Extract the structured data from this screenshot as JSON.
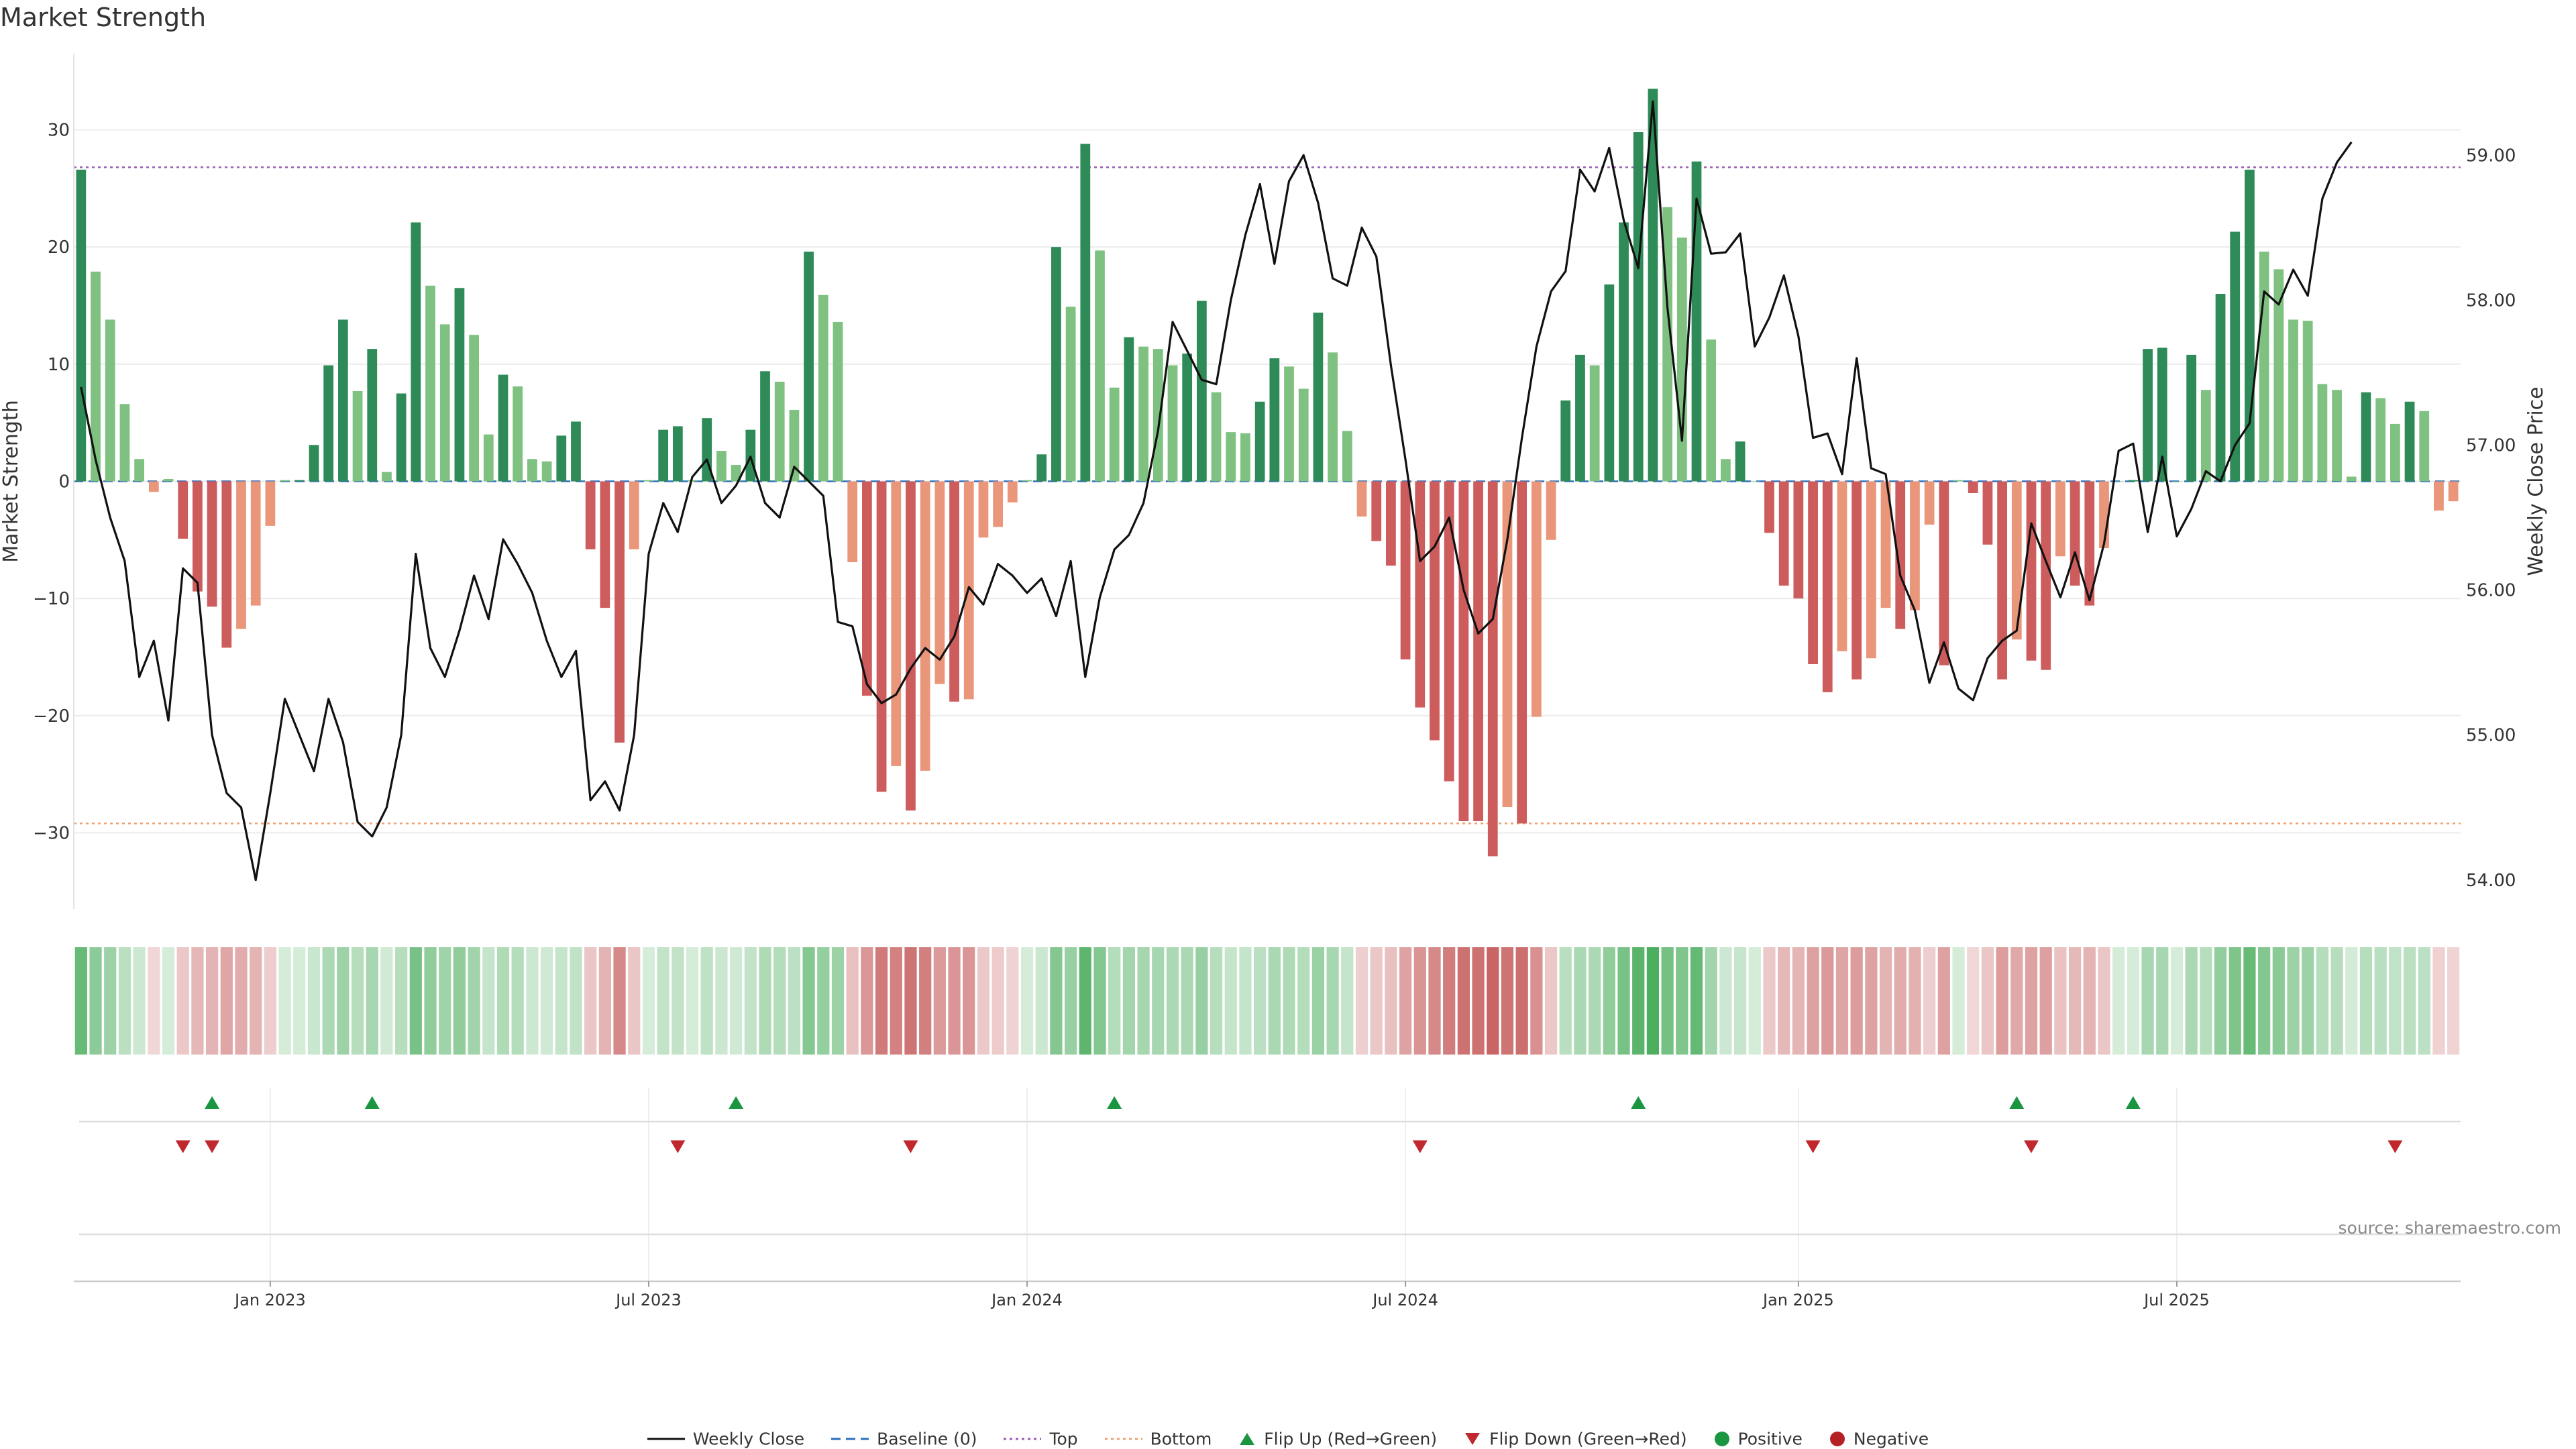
{
  "chart_data": {
    "type": "bar",
    "title": "Market Strength",
    "source": "source: sharemaestro.com",
    "left_axis": {
      "label": "Market Strength",
      "ticks": [
        30,
        20,
        10,
        0,
        -10,
        -20,
        -30
      ],
      "range": [
        -36.5,
        36.5
      ]
    },
    "right_axis": {
      "label": "Weekly Close Price",
      "ticks": [
        "59.00",
        "58.00",
        "57.00",
        "56.00",
        "55.00",
        "54.00"
      ],
      "range": [
        53.8,
        59.7
      ]
    },
    "x_ticks": [
      "Jan 2023",
      "Jul 2023",
      "Jan 2024",
      "Jul 2024",
      "Jan 2025",
      "Jul 2025"
    ],
    "reference_lines": {
      "baseline": 0,
      "top": 26.8,
      "bottom": -29.2
    },
    "strength_values": [
      26.6,
      17.9,
      13.8,
      6.6,
      1.9,
      -0.9,
      0.2,
      -4.9,
      -9.4,
      -10.7,
      -14.2,
      -12.6,
      -10.6,
      -3.8,
      0.1,
      0.1,
      3.1,
      9.9,
      13.8,
      7.7,
      11.3,
      0.8,
      7.5,
      22.1,
      16.7,
      13.4,
      16.5,
      12.5,
      4.0,
      9.1,
      8.1,
      1.9,
      1.7,
      3.9,
      5.1,
      -5.8,
      -10.8,
      -22.3,
      -5.8,
      0.1,
      4.4,
      4.7,
      0.1,
      5.4,
      2.6,
      1.4,
      4.4,
      9.4,
      8.5,
      6.1,
      19.6,
      15.9,
      13.6,
      -6.9,
      -18.3,
      -26.5,
      -24.3,
      -28.1,
      -24.7,
      -17.3,
      -18.8,
      -18.6,
      -4.8,
      -3.9,
      -1.8,
      0.1,
      2.3,
      20.0,
      14.9,
      28.8,
      19.7,
      8.0,
      12.3,
      11.5,
      11.3,
      9.9,
      10.9,
      15.4,
      7.6,
      4.2,
      4.1,
      6.8,
      10.5,
      9.8,
      7.9,
      14.4,
      11.0,
      4.3,
      -3.0,
      -5.1,
      -7.2,
      -15.2,
      -19.3,
      -22.1,
      -25.6,
      -29.0,
      -29.0,
      -32.0,
      -27.8,
      -29.2,
      -20.1,
      -5.0,
      6.9,
      10.8,
      9.9,
      16.8,
      22.1,
      29.8,
      33.5,
      23.4,
      20.8,
      27.3,
      12.1,
      1.9,
      3.4,
      0,
      -4.4,
      -8.9,
      -10.0,
      -15.6,
      -18.0,
      -14.5,
      -16.9,
      -15.1,
      -10.8,
      -12.6,
      -11.0,
      -3.7,
      -15.7,
      0.1,
      -1.0,
      -5.4,
      -16.9,
      -13.5,
      -15.3,
      -16.1,
      -6.4,
      -8.9,
      -10.6,
      -5.7,
      0,
      0.1,
      11.3,
      11.4,
      0,
      10.8,
      7.8,
      16.0,
      21.3,
      26.6,
      19.6,
      18.1,
      13.8,
      13.7,
      8.3,
      7.8,
      0.4,
      7.6,
      7.1,
      4.9,
      6.8,
      6.0,
      -2.5,
      -1.7
    ],
    "weekly_close": [
      57.4,
      56.9,
      56.5,
      56.2,
      55.4,
      55.65,
      55.1,
      56.15,
      56.05,
      55.0,
      54.6,
      54.5,
      54.0,
      54.6,
      55.25,
      55.0,
      54.75,
      55.25,
      54.95,
      54.4,
      54.3,
      54.5,
      55.0,
      56.25,
      55.6,
      55.4,
      55.72,
      56.1,
      55.8,
      56.35,
      56.18,
      55.98,
      55.65,
      55.4,
      55.58,
      54.55,
      54.68,
      54.48,
      55.0,
      56.25,
      56.6,
      56.4,
      56.78,
      56.9,
      56.6,
      56.72,
      56.92,
      56.6,
      56.5,
      56.85,
      56.75,
      56.65,
      55.78,
      55.75,
      55.35,
      55.22,
      55.28,
      55.46,
      55.6,
      55.52,
      55.68,
      56.02,
      55.9,
      56.18,
      56.1,
      55.98,
      56.08,
      55.82,
      56.2,
      55.4,
      55.95,
      56.28,
      56.38,
      56.6,
      57.1,
      57.85,
      57.65,
      57.45,
      57.42,
      58.0,
      58.45,
      58.8,
      58.25,
      58.82,
      59.0,
      58.67,
      58.15,
      58.1,
      58.5,
      58.3,
      57.55,
      56.9,
      56.2,
      56.3,
      56.5,
      56.0,
      55.7,
      55.8,
      56.35,
      57.05,
      57.68,
      58.06,
      58.2,
      58.9,
      58.75,
      59.05,
      58.55,
      58.22,
      59.37,
      57.95,
      57.03,
      58.7,
      58.32,
      58.33,
      58.46,
      57.68,
      57.88,
      58.17,
      57.75,
      57.05,
      57.08,
      56.8,
      57.6,
      56.84,
      56.8,
      56.1,
      55.86,
      55.36,
      55.64,
      55.32,
      55.24,
      55.53,
      55.65,
      55.72,
      56.46,
      56.2,
      55.95,
      56.26,
      55.93,
      56.32,
      56.96,
      57.01,
      56.4,
      56.92,
      56.37,
      56.56,
      56.82,
      56.75,
      57.0,
      57.15,
      58.06,
      57.97,
      58.21,
      58.03,
      58.7,
      58.95,
      59.09
    ],
    "flip_up": [
      "2022-12-05",
      "2023-02-20",
      "2023-08-14",
      "2024-02-12",
      "2024-10-21",
      "2025-04-21",
      "2025-06-16"
    ],
    "flip_down": [
      "2022-11-21",
      "2022-12-05",
      "2023-07-17",
      "2023-11-06",
      "2024-07-08",
      "2025-01-13",
      "2025-04-28",
      "2025-10-20"
    ],
    "heat_strips": "strength shaded per week: green = positive, red = negative; deeper shade = stronger",
    "colors": {
      "strong_pos": "#2e8b57",
      "light_pos": "#7fc180",
      "strong_neg": "#cd5c5c",
      "light_neg": "#e9967a",
      "flip_up": "#1a9641",
      "flip_down": "#c0282d",
      "top_line": "#9b59b6",
      "bottom_line": "#f0a070",
      "baseline": "#2c6fbb",
      "price_line": "#111111"
    },
    "legend": [
      "Weekly Close",
      "Baseline (0)",
      "Top",
      "Bottom",
      "Flip Up (Red→Green)",
      "Flip Down (Green→Red)",
      "Positive",
      "Negative"
    ],
    "legend_position": "bottom-center",
    "grid": true
  }
}
